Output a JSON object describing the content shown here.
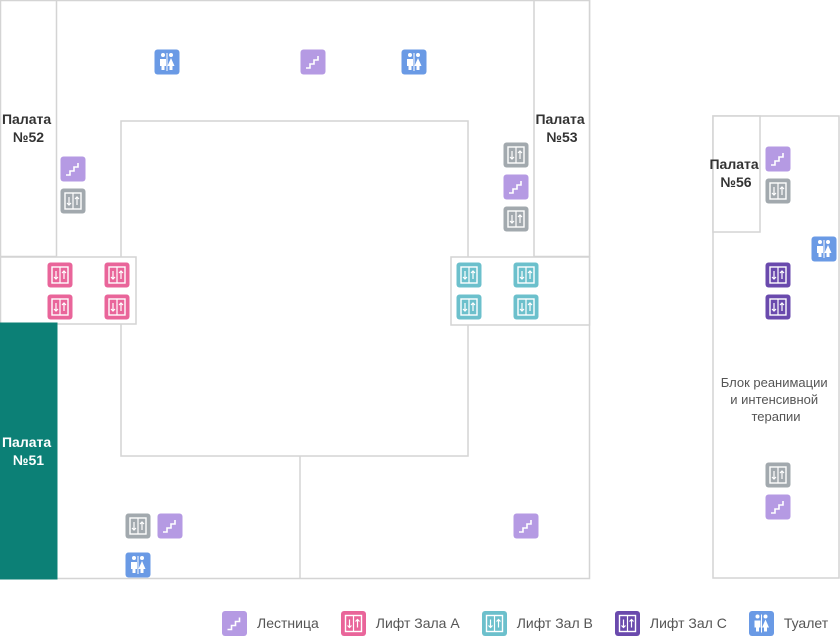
{
  "rooms": {
    "ward_52": [
      "Палата",
      "№52"
    ],
    "ward_53": [
      "Палата",
      "№53"
    ],
    "ward_51": [
      "Палата",
      "№51"
    ],
    "ward_56": [
      "Палата",
      "№56"
    ],
    "icu": [
      "Блок реанимации",
      "и интенсивной",
      "терапии"
    ]
  },
  "legend": {
    "stairs": "Лестница",
    "elevator_a": "Лифт Зала А",
    "elevator_b": "Лифт Зал В",
    "elevator_c": "Лифт Зал С",
    "toilet": "Туалет"
  },
  "colors": {
    "stairs": "#b59ae3",
    "elevator_a": "#e9659a",
    "elevator_b": "#6cc0cc",
    "elevator_c": "#6a4aad",
    "toilet": "#6a9ae5",
    "elevator_generic": "#a2a9ae",
    "ward_active": "#0c8076",
    "wall": "#d4d4d4"
  },
  "icons": {
    "stairs": "stairs-icon",
    "elevator": "elevator-icon",
    "toilet": "toilet-icon"
  }
}
